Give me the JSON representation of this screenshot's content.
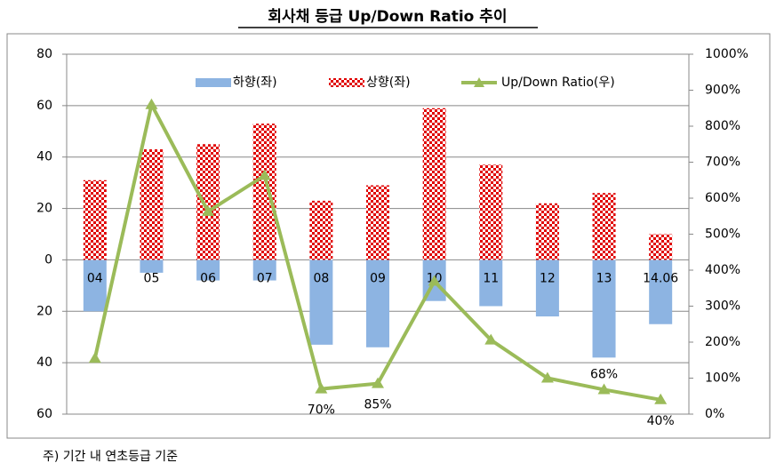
{
  "chart_data": {
    "type": "bar-line",
    "title": "회사채 등급 Up/Down Ratio 추이",
    "note": "주) 기간 내 연초등급 기준",
    "categories": [
      "04",
      "05",
      "06",
      "07",
      "08",
      "09",
      "10",
      "11",
      "12",
      "13",
      "14.06"
    ],
    "series": [
      {
        "name": "하향(좌)",
        "color": "#8db4e2",
        "type": "bar",
        "values": [
          -20,
          -5,
          -8,
          -8,
          -33,
          -34,
          -16,
          -18,
          -22,
          -38,
          -25
        ]
      },
      {
        "name": "상향(좌)",
        "color": "#e00000",
        "type": "bar",
        "values": [
          31,
          43,
          45,
          53,
          23,
          29,
          59,
          37,
          22,
          26,
          10
        ]
      },
      {
        "name": "Up/Down Ratio(우)",
        "color": "#9bbb59",
        "type": "line",
        "axis": "y2",
        "values": [
          155,
          860,
          563,
          663,
          70,
          85,
          369,
          206,
          100,
          68,
          40
        ],
        "value_labels": [
          null,
          null,
          null,
          null,
          "70%",
          "85%",
          null,
          null,
          null,
          "68%",
          "40%"
        ]
      }
    ],
    "ylim": [
      -60,
      80
    ],
    "yticks": [
      {
        "value": -60,
        "label": "60"
      },
      {
        "value": -40,
        "label": "40"
      },
      {
        "value": -20,
        "label": "20"
      },
      0,
      20,
      40,
      60,
      80
    ],
    "y2lim": [
      0,
      1000
    ],
    "y2ticks": [
      {
        "value": 0,
        "label": "0%"
      },
      {
        "value": 100,
        "label": "100%"
      },
      {
        "value": 200,
        "label": "200%"
      },
      {
        "value": 300,
        "label": "300%"
      },
      {
        "value": 400,
        "label": "400%"
      },
      {
        "value": 500,
        "label": "500%"
      },
      {
        "value": 600,
        "label": "600%"
      },
      {
        "value": 700,
        "label": "700%"
      },
      {
        "value": 800,
        "label": "800%"
      },
      {
        "value": 900,
        "label": "900%"
      },
      {
        "value": 1000,
        "label": "1000%"
      }
    ],
    "grid": true,
    "legend": "top"
  }
}
